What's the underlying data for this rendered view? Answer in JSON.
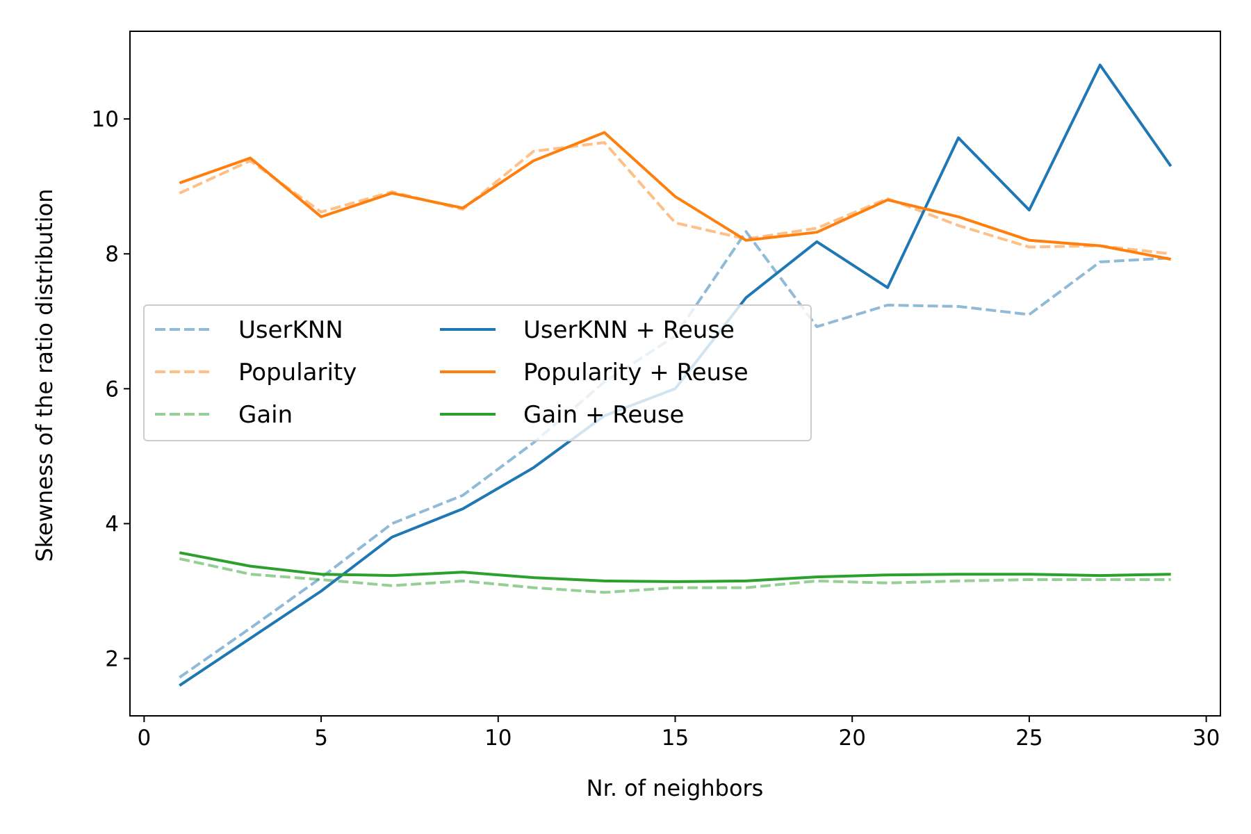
{
  "chart_data": {
    "type": "line",
    "xlabel": "Nr. of neighbors",
    "ylabel": "Skewness of the ratio distribution",
    "xlim": [
      -0.4,
      30.4
    ],
    "ylim": [
      1.15,
      11.3
    ],
    "xticks": [
      0,
      5,
      10,
      15,
      20,
      25,
      30
    ],
    "yticks": [
      2,
      4,
      6,
      8,
      10
    ],
    "grid": false,
    "legend_position": "center-left",
    "legend_columns": 2,
    "x": [
      1,
      3,
      5,
      7,
      9,
      11,
      13,
      15,
      17,
      19,
      21,
      23,
      25,
      27,
      29
    ],
    "series": [
      {
        "name": "UserKNN",
        "color": "#1f77b4",
        "style": "dashed",
        "alpha": 0.5,
        "values": [
          1.72,
          2.45,
          3.2,
          4.0,
          4.42,
          5.2,
          6.1,
          6.78,
          8.33,
          6.92,
          7.24,
          7.22,
          7.1,
          7.88,
          7.94
        ]
      },
      {
        "name": "Popularity",
        "color": "#ff7f0e",
        "style": "dashed",
        "alpha": 0.5,
        "values": [
          8.9,
          9.38,
          8.62,
          8.92,
          8.66,
          9.52,
          9.65,
          8.46,
          8.22,
          8.38,
          8.82,
          8.42,
          8.1,
          8.12,
          8.0
        ]
      },
      {
        "name": "Gain",
        "color": "#2ca02c",
        "style": "dashed",
        "alpha": 0.5,
        "values": [
          3.48,
          3.25,
          3.17,
          3.08,
          3.15,
          3.05,
          2.98,
          3.05,
          3.05,
          3.15,
          3.12,
          3.15,
          3.17,
          3.17,
          3.17
        ]
      },
      {
        "name": "UserKNN + Reuse",
        "color": "#1f77b4",
        "style": "solid",
        "alpha": 1,
        "values": [
          1.6,
          2.3,
          3.0,
          3.8,
          4.22,
          4.83,
          5.6,
          6.0,
          7.35,
          8.18,
          7.5,
          9.72,
          8.65,
          10.8,
          9.3
        ]
      },
      {
        "name": "Popularity + Reuse",
        "color": "#ff7f0e",
        "style": "solid",
        "alpha": 1,
        "values": [
          9.05,
          9.42,
          8.55,
          8.9,
          8.68,
          9.38,
          9.8,
          8.85,
          8.2,
          8.32,
          8.8,
          8.55,
          8.2,
          8.12,
          7.92
        ]
      },
      {
        "name": "Gain + Reuse",
        "color": "#2ca02c",
        "style": "solid",
        "alpha": 1,
        "values": [
          3.57,
          3.37,
          3.25,
          3.23,
          3.28,
          3.2,
          3.15,
          3.14,
          3.15,
          3.21,
          3.24,
          3.25,
          3.25,
          3.23,
          3.25
        ]
      }
    ]
  }
}
